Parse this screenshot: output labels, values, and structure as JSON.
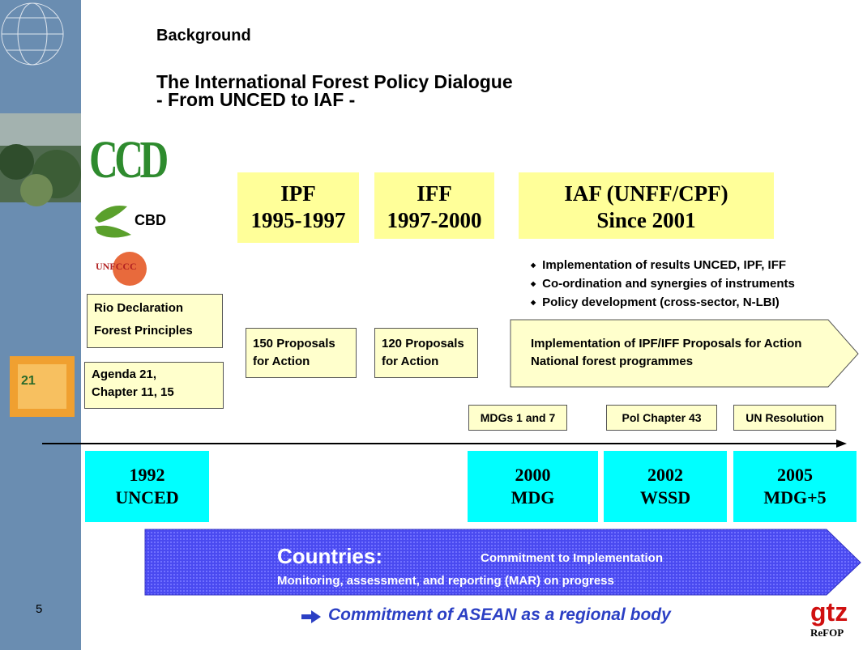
{
  "header": {
    "section": "Background",
    "title_line1": "The International Forest Policy Dialogue",
    "title_line2": "- From UNCED to IAF -"
  },
  "logos": {
    "ccd": "CCD",
    "cbd": "CBD",
    "unfccc": "UNFCCC",
    "book": "21",
    "gtz": "gtz",
    "refop": "ReFOP"
  },
  "processes": [
    {
      "name": "IPF",
      "period": "1995-1997"
    },
    {
      "name": "IFF",
      "period": "1997-2000"
    },
    {
      "name": "IAF (UNFF/CPF)",
      "period": "Since 2001"
    }
  ],
  "iaf_bullets": [
    "Implementation of results UNCED, IPF, IFF",
    "Co-ordination and synergies of instruments",
    "Policy development (cross-sector, N-LBI)"
  ],
  "boxes": {
    "rio": [
      "Rio Declaration",
      "Forest Principles"
    ],
    "agenda": [
      "Agenda 21,",
      "Chapter  11, 15"
    ],
    "ipf_proposals": [
      "150 Proposals",
      "for Action"
    ],
    "iff_proposals": [
      "120 Proposals",
      "for Action"
    ],
    "implementation": [
      "Implementation of IPF/IFF Proposals for Action",
      "National forest programmes"
    ],
    "mdgs": "MDGs 1 and 7",
    "pol": "Pol Chapter 43",
    "un": "UN Resolution"
  },
  "milestones": [
    {
      "year": "1992",
      "event": "UNCED"
    },
    {
      "year": "2000",
      "event": "MDG"
    },
    {
      "year": "2002",
      "event": "WSSD"
    },
    {
      "year": "2005",
      "event": "MDG+5"
    }
  ],
  "countries": {
    "label": "Countries:",
    "commitment": "Commitment to Implementation",
    "mar": "Monitoring, assessment, and reporting (MAR) on progress"
  },
  "asean": "Commitment of ASEAN as a regional body",
  "page_number": "5"
}
